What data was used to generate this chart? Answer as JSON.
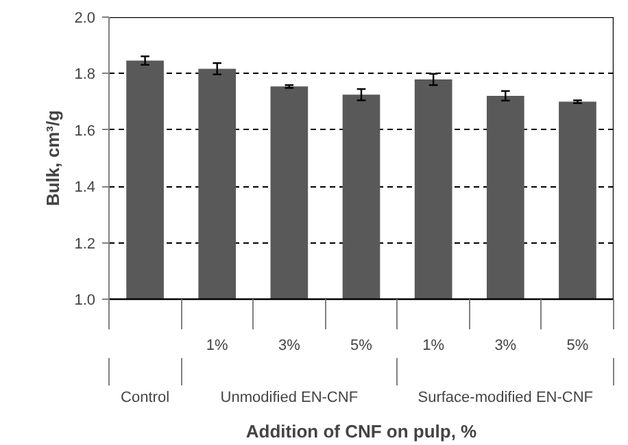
{
  "chart_data": {
    "type": "bar",
    "xlabel": "Addition of CNF on pulp, %",
    "ylabel": "Bulk, cm³/g",
    "categories": [
      null,
      "1%",
      "3%",
      "5%",
      "1%",
      "3%",
      "5%"
    ],
    "values": [
      1.846,
      1.817,
      1.754,
      1.725,
      1.779,
      1.721,
      1.7
    ],
    "errors": [
      0.015,
      0.02,
      0.005,
      0.02,
      0.02,
      0.017,
      0.005
    ],
    "color": "#595959",
    "ylim": [
      1.0,
      2.0
    ],
    "yticks": [
      {
        "value": 1.0,
        "label": "1.0"
      },
      {
        "value": 1.2,
        "label": "1.2"
      },
      {
        "value": 1.4,
        "label": "1.4"
      },
      {
        "value": 1.6,
        "label": "1.6"
      },
      {
        "value": 1.8,
        "label": "1.8"
      },
      {
        "value": 2.0,
        "label": "2.0"
      }
    ],
    "grid": "y",
    "annotations": [
      "Control",
      "Unmodified EN-CNF",
      "Surface-modified EN-CNF"
    ]
  }
}
